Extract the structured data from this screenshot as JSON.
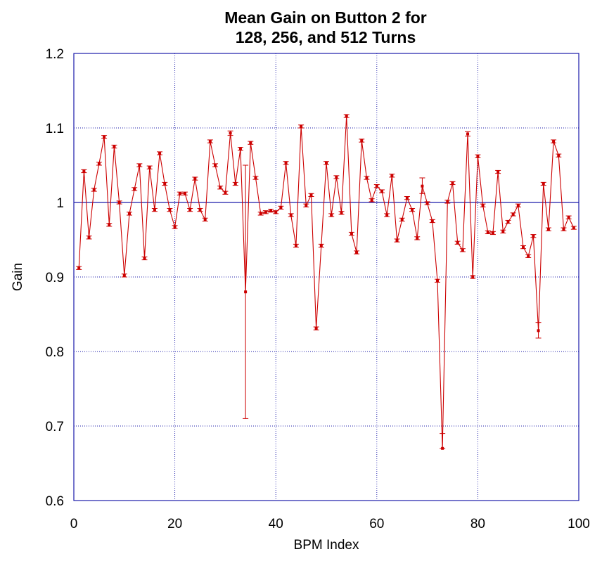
{
  "chart_data": {
    "type": "line",
    "title": [
      "Mean Gain on Button 2 for",
      "128, 256, and 512 Turns"
    ],
    "xlabel": "BPM Index",
    "ylabel": "Gain",
    "xlim": [
      0,
      100
    ],
    "ylim": [
      0.6,
      1.2
    ],
    "xticks": [
      0,
      20,
      40,
      60,
      80,
      100
    ],
    "xtick_labels": [
      "0",
      "20",
      "40",
      "60",
      "80",
      "100"
    ],
    "yticks": [
      0.6,
      0.7,
      0.8,
      0.9,
      1.0,
      1.1,
      1.2
    ],
    "ytick_labels": [
      "0.6",
      "0.7",
      "0.8",
      "0.9",
      "1",
      "1.1",
      "1.2"
    ],
    "grid": true,
    "reference_line": 1.0,
    "colors": {
      "series": "#cc0000",
      "grid": "#1a1aaa",
      "frame": "#1a1aaa"
    },
    "series": [
      {
        "x": [
          1,
          2,
          3,
          4,
          5,
          6,
          7,
          8,
          9,
          10,
          11,
          12,
          13,
          14,
          15,
          16,
          17,
          18,
          19,
          20,
          21,
          22,
          23,
          24,
          25,
          26,
          27,
          28,
          29,
          30,
          31,
          32,
          33,
          34,
          35,
          36,
          37,
          38,
          39,
          40,
          41,
          42,
          43,
          44,
          45,
          46,
          47,
          48,
          49,
          50,
          51,
          52,
          53,
          54,
          55,
          56,
          57,
          58,
          59,
          60,
          61,
          62,
          63,
          64,
          65,
          66,
          67,
          68,
          69,
          70,
          71,
          72,
          73,
          74,
          75,
          76,
          77,
          78,
          79,
          80,
          81,
          82,
          83,
          84,
          85,
          86,
          87,
          88,
          89,
          90,
          91,
          92,
          93,
          94,
          95,
          96,
          97,
          98,
          99
        ],
        "y": [
          0.912,
          1.042,
          0.953,
          1.017,
          1.052,
          1.088,
          0.97,
          1.075,
          1.0,
          0.902,
          0.985,
          1.018,
          1.05,
          0.925,
          1.047,
          0.99,
          1.066,
          1.025,
          0.99,
          0.967,
          1.012,
          1.012,
          0.99,
          1.032,
          0.99,
          0.977,
          1.082,
          1.05,
          1.02,
          1.013,
          1.093,
          1.025,
          1.072,
          0.88,
          1.08,
          1.033,
          0.985,
          0.987,
          0.989,
          0.987,
          0.993,
          1.053,
          0.983,
          0.942,
          1.102,
          0.996,
          1.01,
          0.831,
          0.942,
          1.053,
          0.983,
          1.034,
          0.986,
          1.116,
          0.958,
          0.933,
          1.083,
          1.033,
          1.003,
          1.022,
          1.015,
          0.983,
          1.036,
          0.949,
          0.977,
          1.006,
          0.99,
          0.952,
          1.022,
          0.999,
          0.975,
          0.895,
          0.67,
          1.001,
          1.026,
          0.946,
          0.936,
          1.092,
          0.9,
          1.062,
          0.996,
          0.96,
          0.959,
          1.041,
          0.961,
          0.974,
          0.984,
          0.996,
          0.94,
          0.928,
          0.955,
          0.828,
          1.025,
          0.964,
          1.082,
          1.063,
          0.964,
          0.98,
          0.966
        ],
        "err_low": [
          0.91,
          1.04,
          0.951,
          1.015,
          1.05,
          1.086,
          0.968,
          1.073,
          0.998,
          0.9,
          0.983,
          1.016,
          1.048,
          0.923,
          1.045,
          0.988,
          1.064,
          1.023,
          0.988,
          0.965,
          1.01,
          1.01,
          0.988,
          1.03,
          0.988,
          0.975,
          1.08,
          1.048,
          1.018,
          1.011,
          1.09,
          1.023,
          1.07,
          0.71,
          1.078,
          1.031,
          0.983,
          0.985,
          0.987,
          0.985,
          0.991,
          1.051,
          0.981,
          0.94,
          1.1,
          0.994,
          1.008,
          0.829,
          0.94,
          1.051,
          0.981,
          1.032,
          0.984,
          1.114,
          0.956,
          0.931,
          1.081,
          1.031,
          1.001,
          1.02,
          1.013,
          0.981,
          1.034,
          0.947,
          0.975,
          1.004,
          0.988,
          0.95,
          1.012,
          0.997,
          0.973,
          0.893,
          0.67,
          0.999,
          1.024,
          0.944,
          0.934,
          1.089,
          0.898,
          1.06,
          0.994,
          0.958,
          0.957,
          1.039,
          0.959,
          0.972,
          0.982,
          0.994,
          0.938,
          0.926,
          0.953,
          0.818,
          1.023,
          0.962,
          1.08,
          1.061,
          0.962,
          0.978,
          0.964
        ],
        "err_high": [
          0.914,
          1.044,
          0.955,
          1.019,
          1.054,
          1.09,
          0.972,
          1.077,
          1.002,
          0.904,
          0.987,
          1.02,
          1.052,
          0.927,
          1.049,
          0.992,
          1.068,
          1.027,
          0.992,
          0.969,
          1.014,
          1.014,
          0.992,
          1.034,
          0.992,
          0.979,
          1.084,
          1.052,
          1.022,
          1.015,
          1.096,
          1.027,
          1.074,
          1.05,
          1.082,
          1.035,
          0.987,
          0.989,
          0.991,
          0.989,
          0.995,
          1.055,
          0.985,
          0.944,
          1.104,
          0.998,
          1.012,
          0.833,
          0.944,
          1.055,
          0.985,
          1.036,
          0.988,
          1.118,
          0.96,
          0.935,
          1.085,
          1.035,
          1.005,
          1.024,
          1.017,
          0.985,
          1.038,
          0.951,
          0.979,
          1.008,
          0.992,
          0.954,
          1.033,
          1.001,
          0.977,
          0.897,
          0.69,
          1.003,
          1.028,
          0.948,
          0.938,
          1.095,
          0.902,
          1.064,
          0.998,
          0.962,
          0.961,
          1.043,
          0.963,
          0.976,
          0.986,
          0.998,
          0.942,
          0.93,
          0.957,
          0.839,
          1.027,
          0.966,
          1.084,
          1.065,
          0.966,
          0.982,
          0.968
        ]
      }
    ]
  }
}
